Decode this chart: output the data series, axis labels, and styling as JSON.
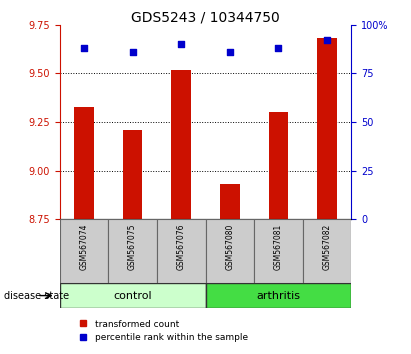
{
  "title": "GDS5243 / 10344750",
  "samples": [
    "GSM567074",
    "GSM567075",
    "GSM567076",
    "GSM567080",
    "GSM567081",
    "GSM567082"
  ],
  "bar_values": [
    9.33,
    9.21,
    9.52,
    8.93,
    9.3,
    9.68
  ],
  "percentile_values": [
    88,
    86,
    90,
    86,
    88,
    92
  ],
  "bar_baseline": 8.75,
  "ylim_left": [
    8.75,
    9.75
  ],
  "ylim_right": [
    0,
    100
  ],
  "yticks_left": [
    8.75,
    9.0,
    9.25,
    9.5,
    9.75
  ],
  "yticks_right": [
    0,
    25,
    50,
    75,
    100
  ],
  "ytick_labels_right": [
    "0",
    "25",
    "50",
    "75",
    "100%"
  ],
  "bar_color": "#cc1100",
  "percentile_color": "#0000cc",
  "control_color": "#ccffcc",
  "arthritis_color": "#44dd44",
  "label_control": "control",
  "label_arthritis": "arthritis",
  "disease_state_label": "disease state",
  "legend_bar": "transformed count",
  "legend_percentile": "percentile rank within the sample",
  "tick_area_color": "#cccccc",
  "gridline_ticks": [
    9.0,
    9.25,
    9.5
  ]
}
